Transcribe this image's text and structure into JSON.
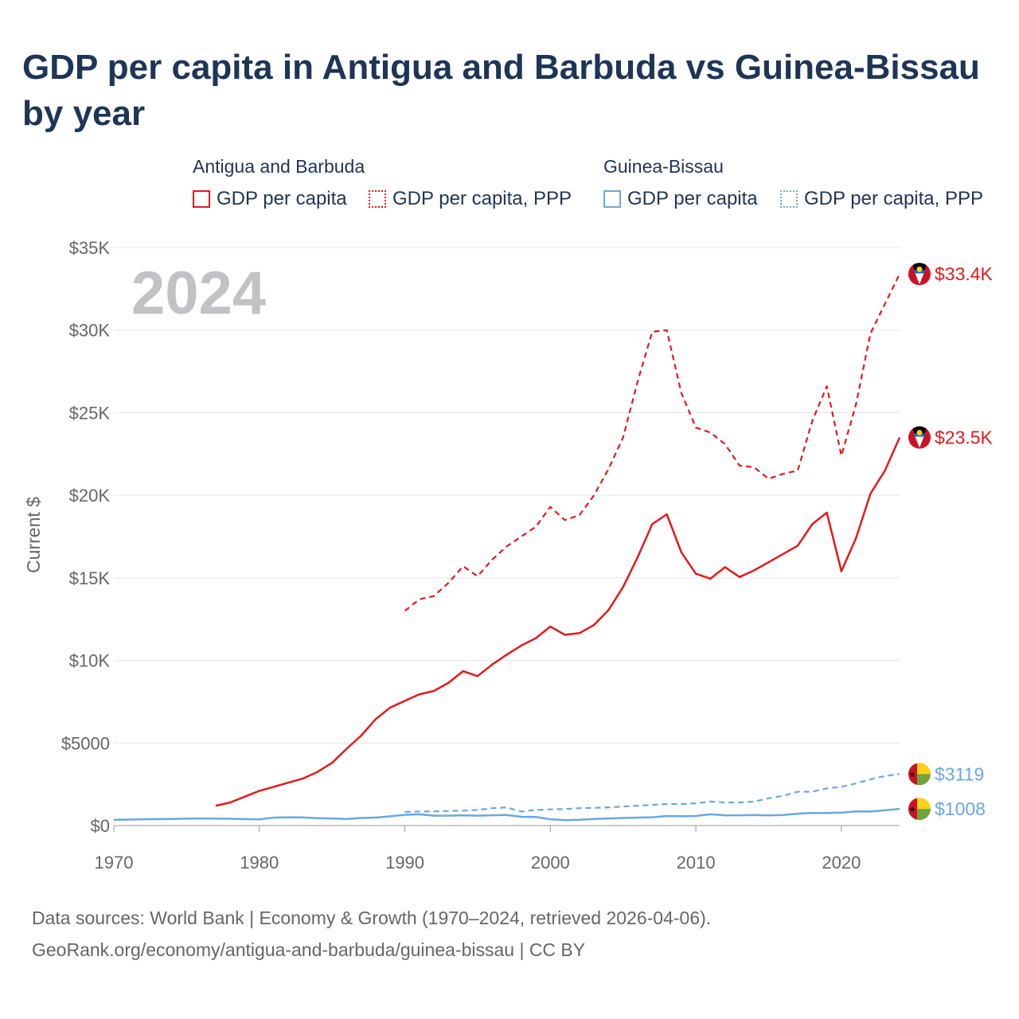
{
  "title": "GDP per capita in Antigua and Barbuda vs Guinea-Bissau by year",
  "legend": {
    "group1": {
      "title": "Antigua and Barbuda",
      "items": [
        "GDP per capita",
        "GDP per capita, PPP"
      ]
    },
    "group2": {
      "title": "Guinea-Bissau",
      "items": [
        "GDP per capita",
        "GDP per capita, PPP"
      ]
    }
  },
  "colors": {
    "antigua": "#e31a1c",
    "guinea": "#69a8e0",
    "grid": "#e6e6e6",
    "axis_text": "#666666",
    "year_label": "#c0c2c6"
  },
  "chart_data": {
    "type": "line",
    "year_label": "2024",
    "ylabel": "Current $",
    "x_range": [
      1970,
      2024
    ],
    "ylim": [
      0,
      35000
    ],
    "x_ticks": [
      1970,
      1980,
      1990,
      2000,
      2010,
      2020
    ],
    "x_tick_labels": [
      "1970",
      "1980",
      "1990",
      "2000",
      "2010",
      "2020"
    ],
    "y_ticks": [
      0,
      5000,
      10000,
      15000,
      20000,
      25000,
      30000,
      35000
    ],
    "y_tick_labels": [
      "$0",
      "$5000",
      "$10K",
      "$15K",
      "$20K",
      "$25K",
      "$30K",
      "$35K"
    ],
    "series": [
      {
        "name": "Antigua and Barbuda GDP per capita",
        "country": "antigua",
        "style": "solid",
        "end_label": "$23.5K",
        "x": [
          1977,
          1978,
          1979,
          1980,
          1981,
          1982,
          1983,
          1984,
          1985,
          1986,
          1987,
          1988,
          1989,
          1990,
          1991,
          1992,
          1993,
          1994,
          1995,
          1996,
          1997,
          1998,
          1999,
          2000,
          2001,
          2002,
          2003,
          2004,
          2005,
          2006,
          2007,
          2008,
          2009,
          2010,
          2011,
          2012,
          2013,
          2014,
          2015,
          2016,
          2017,
          2018,
          2019,
          2020,
          2021,
          2022,
          2023,
          2024
        ],
        "y": [
          1200,
          1400,
          1750,
          2100,
          2350,
          2600,
          2850,
          3250,
          3800,
          4650,
          5450,
          6450,
          7150,
          7550,
          7950,
          8150,
          8650,
          9350,
          9050,
          9750,
          10350,
          10900,
          11350,
          12050,
          11550,
          11650,
          12150,
          13050,
          14450,
          16250,
          18250,
          18850,
          16550,
          15250,
          14950,
          15650,
          15050,
          15450,
          15950,
          16450,
          16950,
          18250,
          18950,
          15400,
          17400,
          20100,
          21500,
          23500
        ]
      },
      {
        "name": "Antigua and Barbuda GDP per capita, PPP",
        "country": "antigua",
        "style": "dashed",
        "end_label": "$33.4K",
        "x": [
          1990,
          1991,
          1992,
          1993,
          1994,
          1995,
          1996,
          1997,
          1998,
          1999,
          2000,
          2001,
          2002,
          2003,
          2004,
          2005,
          2006,
          2007,
          2008,
          2009,
          2010,
          2011,
          2012,
          2013,
          2014,
          2015,
          2016,
          2017,
          2018,
          2019,
          2020,
          2021,
          2022,
          2023,
          2024
        ],
        "y": [
          13000,
          13700,
          13900,
          14700,
          15700,
          15100,
          16100,
          16900,
          17500,
          18100,
          19300,
          18500,
          18800,
          20000,
          21600,
          23500,
          26900,
          29900,
          30000,
          26200,
          24100,
          23800,
          23100,
          21800,
          21700,
          21000,
          21300,
          21500,
          24500,
          26600,
          22400,
          25500,
          29800,
          31600,
          33400
        ]
      },
      {
        "name": "Guinea-Bissau GDP per capita",
        "country": "guinea",
        "style": "solid",
        "end_label": "$1008",
        "x": [
          1970,
          1971,
          1972,
          1973,
          1974,
          1975,
          1976,
          1977,
          1978,
          1979,
          1980,
          1981,
          1982,
          1983,
          1984,
          1985,
          1986,
          1987,
          1988,
          1989,
          1990,
          1991,
          1992,
          1993,
          1994,
          1995,
          1996,
          1997,
          1998,
          1999,
          2000,
          2001,
          2002,
          2003,
          2004,
          2005,
          2006,
          2007,
          2008,
          2009,
          2010,
          2011,
          2012,
          2013,
          2014,
          2015,
          2016,
          2017,
          2018,
          2019,
          2020,
          2021,
          2022,
          2023,
          2024
        ],
        "y": [
          350,
          360,
          380,
          390,
          400,
          420,
          430,
          420,
          410,
          390,
          370,
          480,
          500,
          490,
          450,
          430,
          400,
          460,
          480,
          560,
          650,
          680,
          600,
          600,
          620,
          600,
          620,
          640,
          530,
          520,
          380,
          330,
          350,
          400,
          430,
          460,
          480,
          500,
          580,
          560,
          580,
          680,
          620,
          620,
          640,
          610,
          640,
          720,
          760,
          760,
          780,
          860,
          850,
          920,
          1008
        ]
      },
      {
        "name": "Guinea-Bissau GDP per capita, PPP",
        "country": "guinea",
        "style": "dashed",
        "end_label": "$3119",
        "x": [
          1990,
          1991,
          1992,
          1993,
          1994,
          1995,
          1996,
          1997,
          1998,
          1999,
          2000,
          2001,
          2002,
          2003,
          2004,
          2005,
          2006,
          2007,
          2008,
          2009,
          2010,
          2011,
          2012,
          2013,
          2014,
          2015,
          2016,
          2017,
          2018,
          2019,
          2020,
          2021,
          2022,
          2023,
          2024
        ],
        "y": [
          820,
          850,
          860,
          880,
          900,
          950,
          1050,
          1100,
          850,
          950,
          980,
          1000,
          1050,
          1070,
          1100,
          1150,
          1200,
          1250,
          1300,
          1300,
          1350,
          1450,
          1400,
          1400,
          1450,
          1650,
          1800,
          2050,
          2050,
          2250,
          2350,
          2550,
          2800,
          3000,
          3119
        ]
      }
    ]
  },
  "source": {
    "line1": "Data sources: World Bank | Economy & Growth (1970–2024, retrieved 2026-04-06).",
    "line2": "GeoRank.org/economy/antigua-and-barbuda/guinea-bissau | CC BY"
  }
}
